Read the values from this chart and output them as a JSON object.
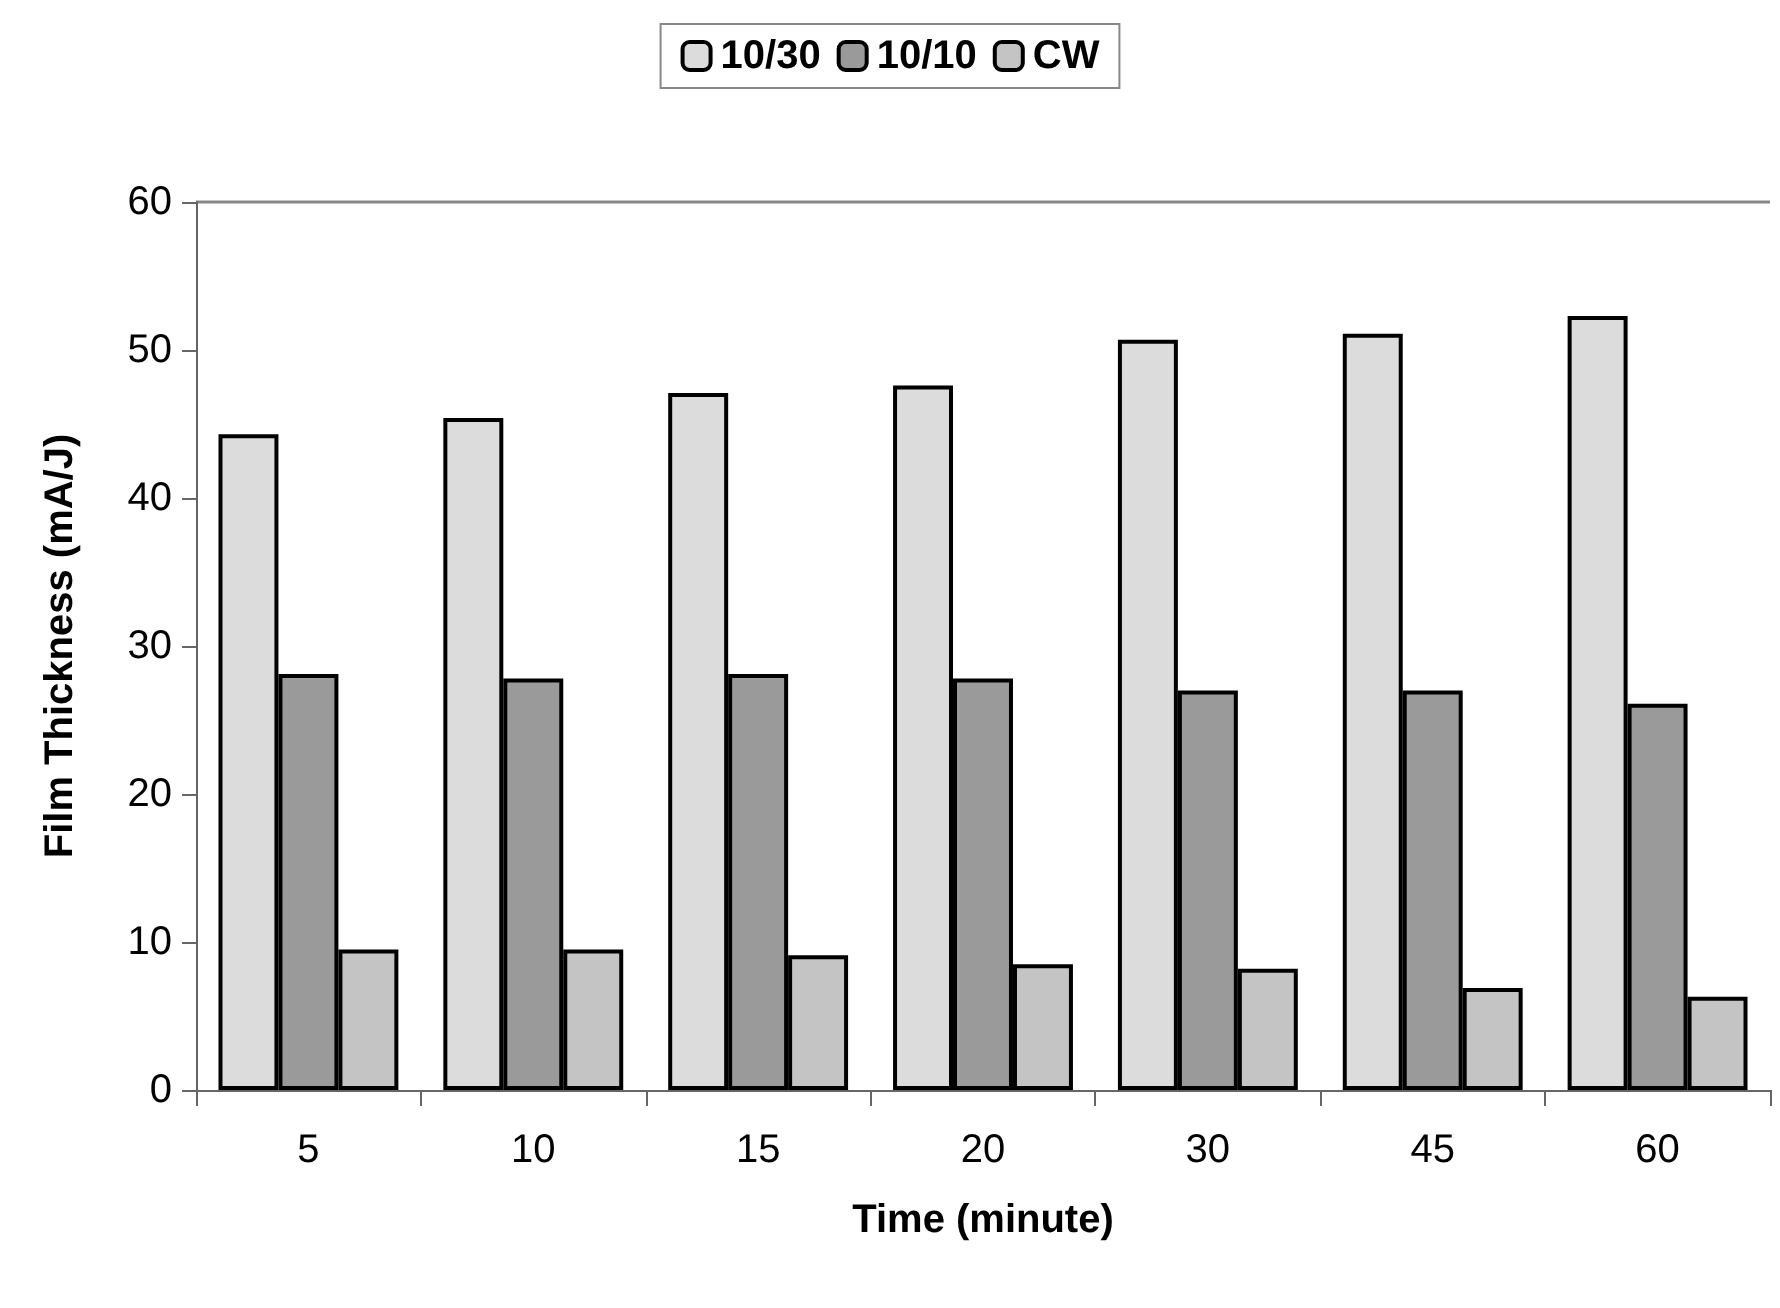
{
  "chart_data": {
    "type": "bar",
    "xlabel": "Time (minute)",
    "ylabel": "Film Thickness (mA/J)",
    "categories": [
      "5",
      "10",
      "15",
      "20",
      "30",
      "45",
      "60"
    ],
    "series": [
      {
        "name": "10/30",
        "color": "#dcdcdc",
        "values": [
          44.3,
          45.4,
          47.1,
          47.6,
          50.7,
          51.1,
          52.3
        ]
      },
      {
        "name": "10/10",
        "color": "#9a9a9a",
        "values": [
          28.1,
          27.8,
          28.1,
          27.8,
          27.0,
          27.0,
          26.1
        ]
      },
      {
        "name": "CW",
        "color": "#c4c4c4",
        "values": [
          9.5,
          9.5,
          9.1,
          8.5,
          8.2,
          6.9,
          6.3
        ]
      }
    ],
    "ylim": [
      0,
      60
    ],
    "yticks": [
      0,
      10,
      20,
      30,
      40,
      50,
      60
    ],
    "grid": false,
    "legend": "top"
  }
}
